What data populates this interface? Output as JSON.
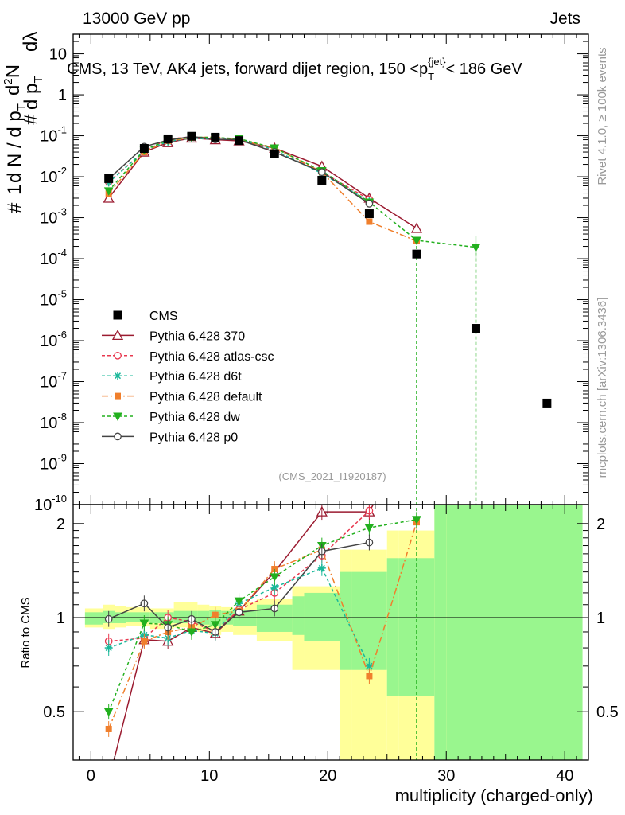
{
  "header": {
    "left": "13000 GeV pp",
    "right": "Jets"
  },
  "side_labels": {
    "rivet": "Rivet 4.1.0, ≥ 100k events",
    "mcplots": "mcplots.cern.ch [arXiv:1306.3436]"
  },
  "main_title": "CMS, 13 TeV, AK4 jets, forward dijet region, 150 < p_T^{jet} < 186 GeV",
  "analysis_tag": "(CMS_2021_I1920187)",
  "ylabel_main": "1/(dN/dp_T) d²N/(dp_T dλ)",
  "ylabel_ratio": "Ratio to CMS",
  "xlabel": "multiplicity (charged-only)",
  "chart_data": [
    {
      "type": "scatter",
      "panel": "main",
      "yscale": "log",
      "xlim": [
        -1.5,
        42
      ],
      "ylim": [
        1e-10,
        30
      ],
      "x_ticks": [
        0,
        10,
        20,
        30,
        40
      ],
      "y_tick_labels": [
        "10^{-10}",
        "10^{-9}",
        "10^{-8}",
        "10^{-7}",
        "10^{-6}",
        "10^{-5}",
        "10^{-4}",
        "10^{-3}",
        "10^{-2}",
        "10^{-1}",
        "1",
        "10"
      ],
      "data": {
        "name": "CMS",
        "x": [
          1.5,
          4.5,
          6.5,
          8.5,
          10.5,
          12.5,
          15.5,
          19.5,
          23.5,
          27.5,
          32.5,
          38.5
        ],
        "y": [
          0.009,
          0.049,
          0.084,
          0.097,
          0.092,
          0.076,
          0.036,
          0.0082,
          0.00125,
          0.00013,
          2e-06,
          3e-08
        ]
      },
      "series": [
        {
          "name": "Pythia 6.428 370",
          "color": "#9b1b30",
          "dash": "",
          "marker": "triangle-open",
          "x": [
            1.5,
            4.5,
            6.5,
            8.5,
            10.5,
            12.5,
            15.5,
            19.5,
            23.5,
            27.5
          ],
          "y": [
            0.003,
            0.04,
            0.068,
            0.088,
            0.08,
            0.075,
            0.05,
            0.018,
            0.003,
            0.00055
          ]
        },
        {
          "name": "Pythia 6.428 atlas-csc",
          "color": "#e8384f",
          "dash": "4,3",
          "marker": "circle-open",
          "x": [
            1.5,
            4.5,
            6.5,
            8.5,
            10.5,
            12.5,
            15.5,
            19.5,
            23.5
          ],
          "y": [
            0.0075,
            0.042,
            0.083,
            0.094,
            0.083,
            0.08,
            0.043,
            0.013,
            0.0028
          ]
        },
        {
          "name": "Pythia 6.428 d6t",
          "color": "#1ab89a",
          "dash": "4,3",
          "marker": "star",
          "x": [
            1.5,
            4.5,
            6.5,
            8.5,
            10.5,
            12.5,
            15.5,
            19.5,
            23.5
          ],
          "y": [
            0.0072,
            0.043,
            0.072,
            0.088,
            0.082,
            0.084,
            0.045,
            0.012,
            0.0025
          ]
        },
        {
          "name": "Pythia 6.428 default",
          "color": "#f07f2c",
          "dash": "8,3,2,3",
          "marker": "square-filled",
          "x": [
            1.5,
            4.5,
            6.5,
            8.5,
            10.5,
            12.5,
            15.5,
            19.5,
            23.5,
            27.5
          ],
          "y": [
            0.0039,
            0.04,
            0.075,
            0.09,
            0.093,
            0.078,
            0.051,
            0.013,
            0.0008,
            0.00027
          ]
        },
        {
          "name": "Pythia 6.428 dw",
          "color": "#22b01e",
          "dash": "4,3",
          "marker": "triangle-down-filled",
          "x": [
            1.5,
            4.5,
            6.5,
            8.5,
            10.5,
            12.5,
            15.5,
            19.5,
            23.5,
            27.5,
            32.5
          ],
          "y": [
            0.0045,
            0.045,
            0.078,
            0.093,
            0.09,
            0.085,
            0.05,
            0.014,
            0.0024,
            0.00028,
            0.00019
          ]
        },
        {
          "name": "Pythia 6.428 p0",
          "color": "#444444",
          "dash": "",
          "marker": "circle-open",
          "x": [
            1.5,
            4.5,
            6.5,
            8.5,
            10.5,
            12.5,
            15.5,
            19.5,
            23.5
          ],
          "y": [
            0.0089,
            0.054,
            0.078,
            0.096,
            0.082,
            0.08,
            0.04,
            0.013,
            0.0022
          ]
        }
      ]
    },
    {
      "type": "line",
      "panel": "ratio",
      "ylabel": "Ratio to CMS",
      "xlabel": "multiplicity (charged-only)",
      "ylim": [
        0.35,
        2.3
      ],
      "y_ticks": [
        0.5,
        1,
        2
      ],
      "x_ticks": [
        0,
        10,
        20,
        30,
        40
      ],
      "bands": {
        "edges": [
          -0.5,
          1,
          2,
          3,
          5,
          7,
          8,
          9,
          10,
          11,
          12,
          13,
          14,
          17,
          18,
          21,
          22,
          25,
          26,
          29,
          30,
          41.5
        ],
        "yellow_low": [
          0.93,
          0.92,
          0.93,
          0.94,
          0.92,
          0.93,
          0.93,
          0.9,
          0.88,
          0.9,
          0.88,
          0.88,
          0.84,
          0.68,
          0.68,
          0.3,
          0.3,
          0.3,
          0.3,
          0.3,
          0.3
        ],
        "yellow_high": [
          1.07,
          1.1,
          1.09,
          1.08,
          1.07,
          1.12,
          1.12,
          1.1,
          1.09,
          1.08,
          1.07,
          1.12,
          1.15,
          1.26,
          1.26,
          1.65,
          1.65,
          1.9,
          1.9,
          2.5,
          2.5
        ],
        "green_low": [
          0.95,
          0.96,
          0.96,
          0.97,
          0.96,
          0.96,
          0.96,
          0.95,
          0.94,
          0.95,
          0.94,
          0.94,
          0.9,
          0.88,
          0.84,
          0.68,
          0.68,
          0.56,
          0.56,
          0.3,
          0.3
        ],
        "green_high": [
          1.04,
          1.05,
          1.04,
          1.04,
          1.04,
          1.05,
          1.05,
          1.05,
          1.06,
          1.05,
          1.06,
          1.06,
          1.1,
          1.17,
          1.2,
          1.4,
          1.4,
          1.55,
          1.55,
          2.5,
          2.5
        ]
      },
      "series": [
        {
          "name": "Pythia 6.428 370",
          "x": [
            1.5,
            4.5,
            6.5,
            8.5,
            10.5,
            12.5,
            15.5,
            19.5,
            23.5,
            27.5
          ],
          "y": [
            0.3,
            0.85,
            0.84,
            0.93,
            0.89,
            1.05,
            1.4,
            2.18,
            2.18,
            4.2
          ]
        },
        {
          "name": "Pythia 6.428 atlas-csc",
          "x": [
            1.5,
            4.5,
            6.5,
            8.5,
            10.5,
            12.5,
            15.5,
            19.5,
            23.5
          ],
          "y": [
            0.84,
            0.86,
            1.0,
            0.97,
            0.9,
            1.06,
            1.2,
            1.58,
            2.2
          ]
        },
        {
          "name": "Pythia 6.428 d6t",
          "x": [
            1.5,
            4.5,
            6.5,
            8.5,
            10.5,
            12.5,
            15.5,
            19.5,
            23.5
          ],
          "y": [
            0.8,
            0.88,
            0.86,
            0.91,
            0.89,
            1.11,
            1.25,
            1.44,
            0.7
          ]
        },
        {
          "name": "Pythia 6.428 default",
          "x": [
            1.5,
            4.5,
            6.5,
            8.5,
            10.5,
            12.5,
            15.5,
            19.5,
            23.5,
            27.5
          ],
          "y": [
            0.44,
            0.84,
            0.9,
            0.93,
            1.02,
            1.05,
            1.43,
            1.65,
            0.65,
            2.02
          ]
        },
        {
          "name": "Pythia 6.428 dw",
          "x": [
            1.5,
            4.5,
            6.5,
            8.5,
            10.5,
            12.5,
            15.5,
            19.5,
            23.5,
            27.5
          ],
          "y": [
            0.5,
            0.96,
            0.95,
            0.9,
            0.95,
            1.13,
            1.35,
            1.7,
            1.94,
            2.06
          ]
        },
        {
          "name": "Pythia 6.428 p0",
          "x": [
            1.5,
            4.5,
            6.5,
            8.5,
            10.5,
            12.5,
            15.5,
            19.5,
            23.5
          ],
          "y": [
            0.99,
            1.11,
            0.93,
            0.99,
            0.9,
            1.04,
            1.07,
            1.63,
            1.74
          ]
        }
      ]
    }
  ]
}
